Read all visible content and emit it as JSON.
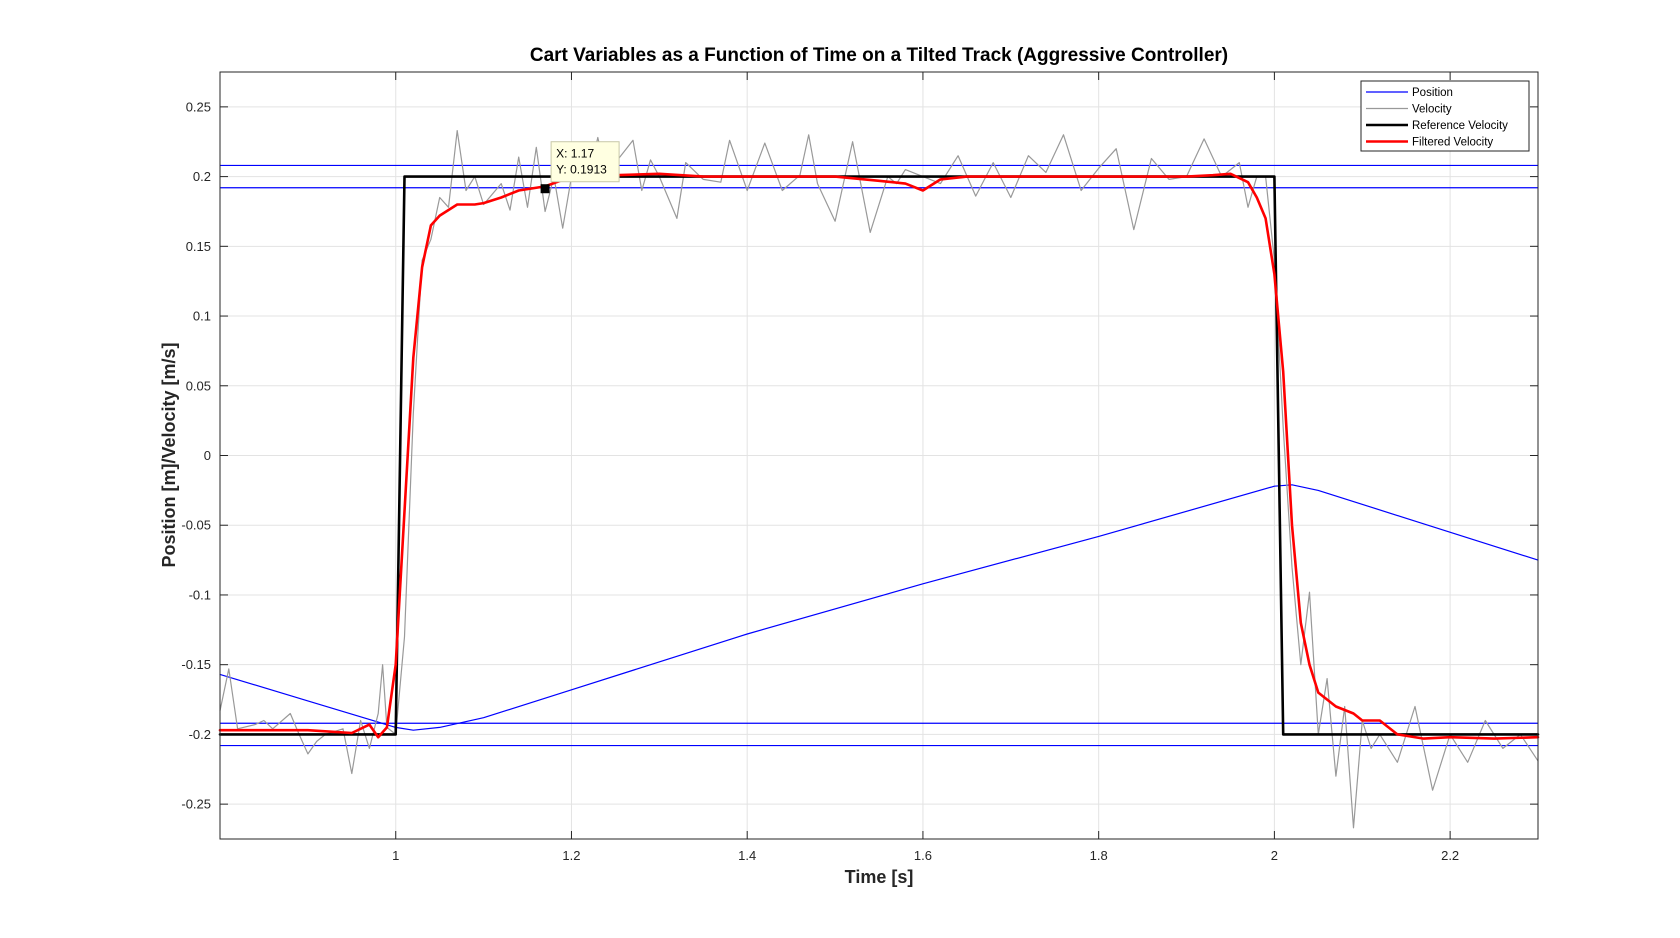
{
  "chart_data": {
    "type": "line",
    "title": "Cart Variables as a Function of Time on a Tilted Track (Aggressive Controller)",
    "xlabel": "Time [s]",
    "ylabel": "Position [m]/Velocity [m/s]",
    "xlim": [
      0.8,
      2.3
    ],
    "ylim": [
      -0.275,
      0.275
    ],
    "xticks": [
      1,
      1.2,
      1.4,
      1.6,
      1.8,
      2,
      2.2
    ],
    "xtick_labels": [
      "1",
      "1.2",
      "1.4",
      "1.6",
      "1.8",
      "2",
      "2.2"
    ],
    "yticks": [
      -0.25,
      -0.2,
      -0.15,
      -0.1,
      -0.05,
      0,
      0.05,
      0.1,
      0.15,
      0.2,
      0.25
    ],
    "ytick_labels": [
      "-0.25",
      "-0.2",
      "-0.15",
      "-0.1",
      "-0.05",
      "0",
      "0.05",
      "0.1",
      "0.15",
      "0.2",
      "0.25"
    ],
    "grid": true,
    "legend": "top-right",
    "series": [
      {
        "name": "Position",
        "color": "#0000ff",
        "width": 1.2,
        "x": [
          0.8,
          0.9,
          1.0,
          1.02,
          1.05,
          1.1,
          1.2,
          1.4,
          1.6,
          1.8,
          2.0,
          2.02,
          2.05,
          2.15,
          2.3
        ],
        "y": [
          -0.157,
          -0.176,
          -0.195,
          -0.197,
          -0.195,
          -0.188,
          -0.168,
          -0.128,
          -0.092,
          -0.058,
          -0.022,
          -0.021,
          -0.025,
          -0.045,
          -0.075
        ]
      },
      {
        "name": "Velocity",
        "color": "#999999",
        "width": 1.2,
        "x": [
          0.8,
          0.81,
          0.82,
          0.84,
          0.85,
          0.86,
          0.88,
          0.89,
          0.9,
          0.91,
          0.92,
          0.94,
          0.95,
          0.96,
          0.97,
          0.98,
          0.985,
          0.99,
          1.0,
          1.01,
          1.02,
          1.03,
          1.04,
          1.05,
          1.06,
          1.07,
          1.08,
          1.09,
          1.1,
          1.12,
          1.13,
          1.14,
          1.15,
          1.16,
          1.17,
          1.18,
          1.19,
          1.2,
          1.22,
          1.23,
          1.24,
          1.25,
          1.26,
          1.27,
          1.28,
          1.29,
          1.3,
          1.32,
          1.33,
          1.35,
          1.37,
          1.38,
          1.4,
          1.42,
          1.44,
          1.46,
          1.47,
          1.48,
          1.5,
          1.52,
          1.54,
          1.56,
          1.57,
          1.58,
          1.6,
          1.62,
          1.64,
          1.66,
          1.68,
          1.7,
          1.72,
          1.74,
          1.76,
          1.78,
          1.8,
          1.82,
          1.84,
          1.86,
          1.88,
          1.9,
          1.92,
          1.94,
          1.96,
          1.97,
          1.98,
          1.99,
          2.0,
          2.01,
          2.02,
          2.03,
          2.04,
          2.05,
          2.06,
          2.07,
          2.08,
          2.09,
          2.1,
          2.11,
          2.12,
          2.14,
          2.16,
          2.18,
          2.2,
          2.22,
          2.24,
          2.26,
          2.28,
          2.3
        ],
        "y": [
          -0.183,
          -0.153,
          -0.196,
          -0.193,
          -0.19,
          -0.196,
          -0.185,
          -0.2,
          -0.214,
          -0.205,
          -0.2,
          -0.196,
          -0.228,
          -0.19,
          -0.21,
          -0.185,
          -0.15,
          -0.195,
          -0.2,
          -0.13,
          0.03,
          0.14,
          0.155,
          0.185,
          0.178,
          0.233,
          0.19,
          0.2,
          0.18,
          0.195,
          0.176,
          0.214,
          0.178,
          0.221,
          0.175,
          0.2,
          0.163,
          0.2,
          0.2,
          0.228,
          0.2,
          0.21,
          0.218,
          0.226,
          0.19,
          0.212,
          0.2,
          0.17,
          0.21,
          0.198,
          0.196,
          0.226,
          0.19,
          0.224,
          0.19,
          0.201,
          0.23,
          0.195,
          0.168,
          0.225,
          0.16,
          0.2,
          0.195,
          0.205,
          0.2,
          0.195,
          0.215,
          0.186,
          0.21,
          0.185,
          0.215,
          0.203,
          0.23,
          0.19,
          0.206,
          0.22,
          0.162,
          0.213,
          0.198,
          0.2,
          0.227,
          0.2,
          0.21,
          0.178,
          0.2,
          0.2,
          0.14,
          0.02,
          -0.08,
          -0.15,
          -0.098,
          -0.2,
          -0.16,
          -0.23,
          -0.18,
          -0.267,
          -0.19,
          -0.21,
          -0.2,
          -0.22,
          -0.18,
          -0.24,
          -0.2,
          -0.22,
          -0.19,
          -0.21,
          -0.2,
          -0.219
        ]
      },
      {
        "name": "Reference Velocity",
        "color": "#000000",
        "width": 2.6,
        "x": [
          0.8,
          1.0,
          1.01,
          2.0,
          2.01,
          2.3
        ],
        "y": [
          -0.2,
          -0.2,
          0.2,
          0.2,
          -0.2,
          -0.2
        ]
      },
      {
        "name": "Filtered Velocity",
        "color": "#ff0000",
        "width": 2.6,
        "x": [
          0.8,
          0.85,
          0.9,
          0.95,
          0.97,
          0.98,
          0.99,
          1.0,
          1.01,
          1.02,
          1.03,
          1.04,
          1.05,
          1.07,
          1.09,
          1.1,
          1.12,
          1.14,
          1.17,
          1.2,
          1.25,
          1.3,
          1.35,
          1.4,
          1.45,
          1.5,
          1.55,
          1.58,
          1.6,
          1.62,
          1.65,
          1.7,
          1.75,
          1.8,
          1.85,
          1.9,
          1.93,
          1.95,
          1.97,
          1.98,
          1.99,
          2.0,
          2.01,
          2.02,
          2.03,
          2.04,
          2.05,
          2.07,
          2.09,
          2.1,
          2.12,
          2.14,
          2.17,
          2.2,
          2.25,
          2.3
        ],
        "y": [
          -0.197,
          -0.197,
          -0.197,
          -0.199,
          -0.193,
          -0.202,
          -0.195,
          -0.15,
          -0.04,
          0.07,
          0.135,
          0.165,
          0.172,
          0.18,
          0.18,
          0.181,
          0.185,
          0.19,
          0.193,
          0.2,
          0.201,
          0.202,
          0.2,
          0.2,
          0.2,
          0.2,
          0.197,
          0.195,
          0.19,
          0.198,
          0.2,
          0.2,
          0.2,
          0.2,
          0.2,
          0.2,
          0.201,
          0.202,
          0.196,
          0.185,
          0.17,
          0.13,
          0.06,
          -0.05,
          -0.12,
          -0.15,
          -0.17,
          -0.18,
          -0.185,
          -0.19,
          -0.19,
          -0.2,
          -0.203,
          -0.202,
          -0.203,
          -0.202
        ]
      }
    ],
    "reference_lines": [
      {
        "color": "#0000ff",
        "y": 0.208
      },
      {
        "color": "#0000ff",
        "y": 0.192
      },
      {
        "color": "#0000ff",
        "y": -0.192
      },
      {
        "color": "#0000ff",
        "y": -0.208
      }
    ],
    "datatip": {
      "x": 1.17,
      "y": 0.1913,
      "x_text": "X: 1.17",
      "y_text": "Y: 0.1913"
    }
  }
}
